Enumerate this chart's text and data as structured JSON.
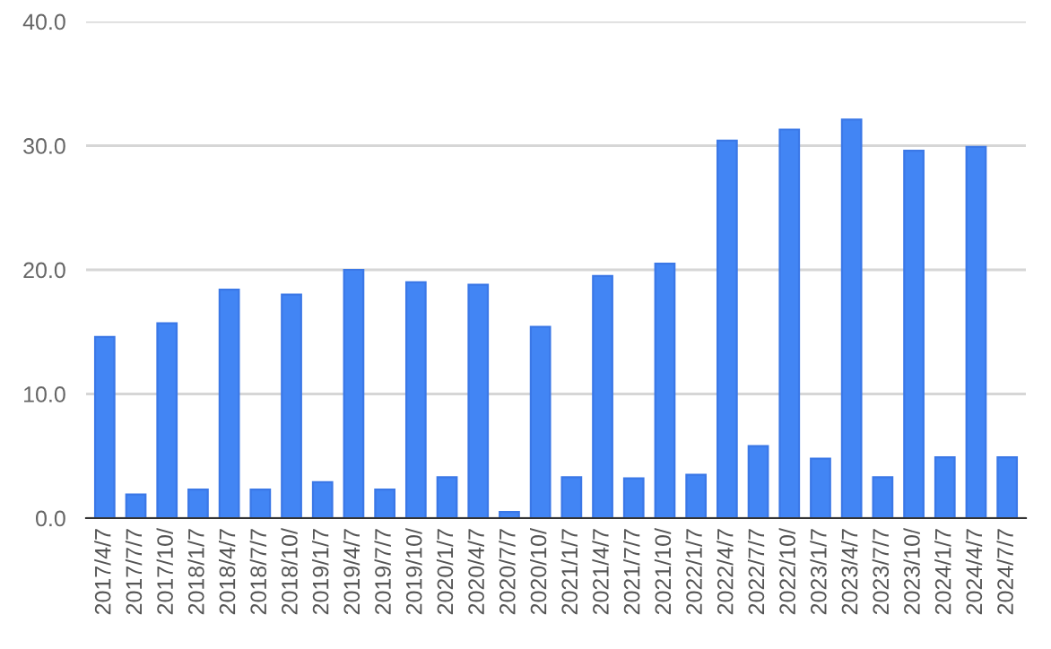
{
  "chart_data": {
    "type": "bar",
    "categories": [
      "2017/4/7",
      "2017/7/7",
      "2017/10/",
      "2018/1/7",
      "2018/4/7",
      "2018/7/7",
      "2018/10/",
      "2019/1/7",
      "2019/4/7",
      "2019/7/7",
      "2019/10/",
      "2020/1/7",
      "2020/4/7",
      "2020/7/7",
      "2020/10/",
      "2021/1/7",
      "2021/4/7",
      "2021/7/7",
      "2021/10/",
      "2022/1/7",
      "2022/4/7",
      "2022/7/7",
      "2022/10/",
      "2023/1/7",
      "2023/4/7",
      "2023/7/7",
      "2023/10/",
      "2024/1/7",
      "2024/4/7",
      "2024/7/7"
    ],
    "values": [
      14.6,
      1.9,
      15.7,
      2.3,
      18.4,
      2.3,
      18.0,
      2.9,
      20.0,
      2.3,
      19.0,
      3.3,
      18.8,
      0.5,
      15.4,
      3.3,
      19.5,
      3.2,
      20.5,
      3.5,
      30.4,
      5.8,
      31.3,
      4.8,
      32.1,
      3.3,
      29.6,
      4.9,
      29.9,
      4.9
    ],
    "color": "#4285f4",
    "ylim": [
      0,
      40
    ],
    "yticks": [
      {
        "value": 0,
        "label": "0.0"
      },
      {
        "value": 10,
        "label": "10.0"
      },
      {
        "value": 20,
        "label": "20.0"
      },
      {
        "value": 30,
        "label": "30.0"
      },
      {
        "value": 40,
        "label": "40.0"
      }
    ],
    "grid": "y"
  }
}
